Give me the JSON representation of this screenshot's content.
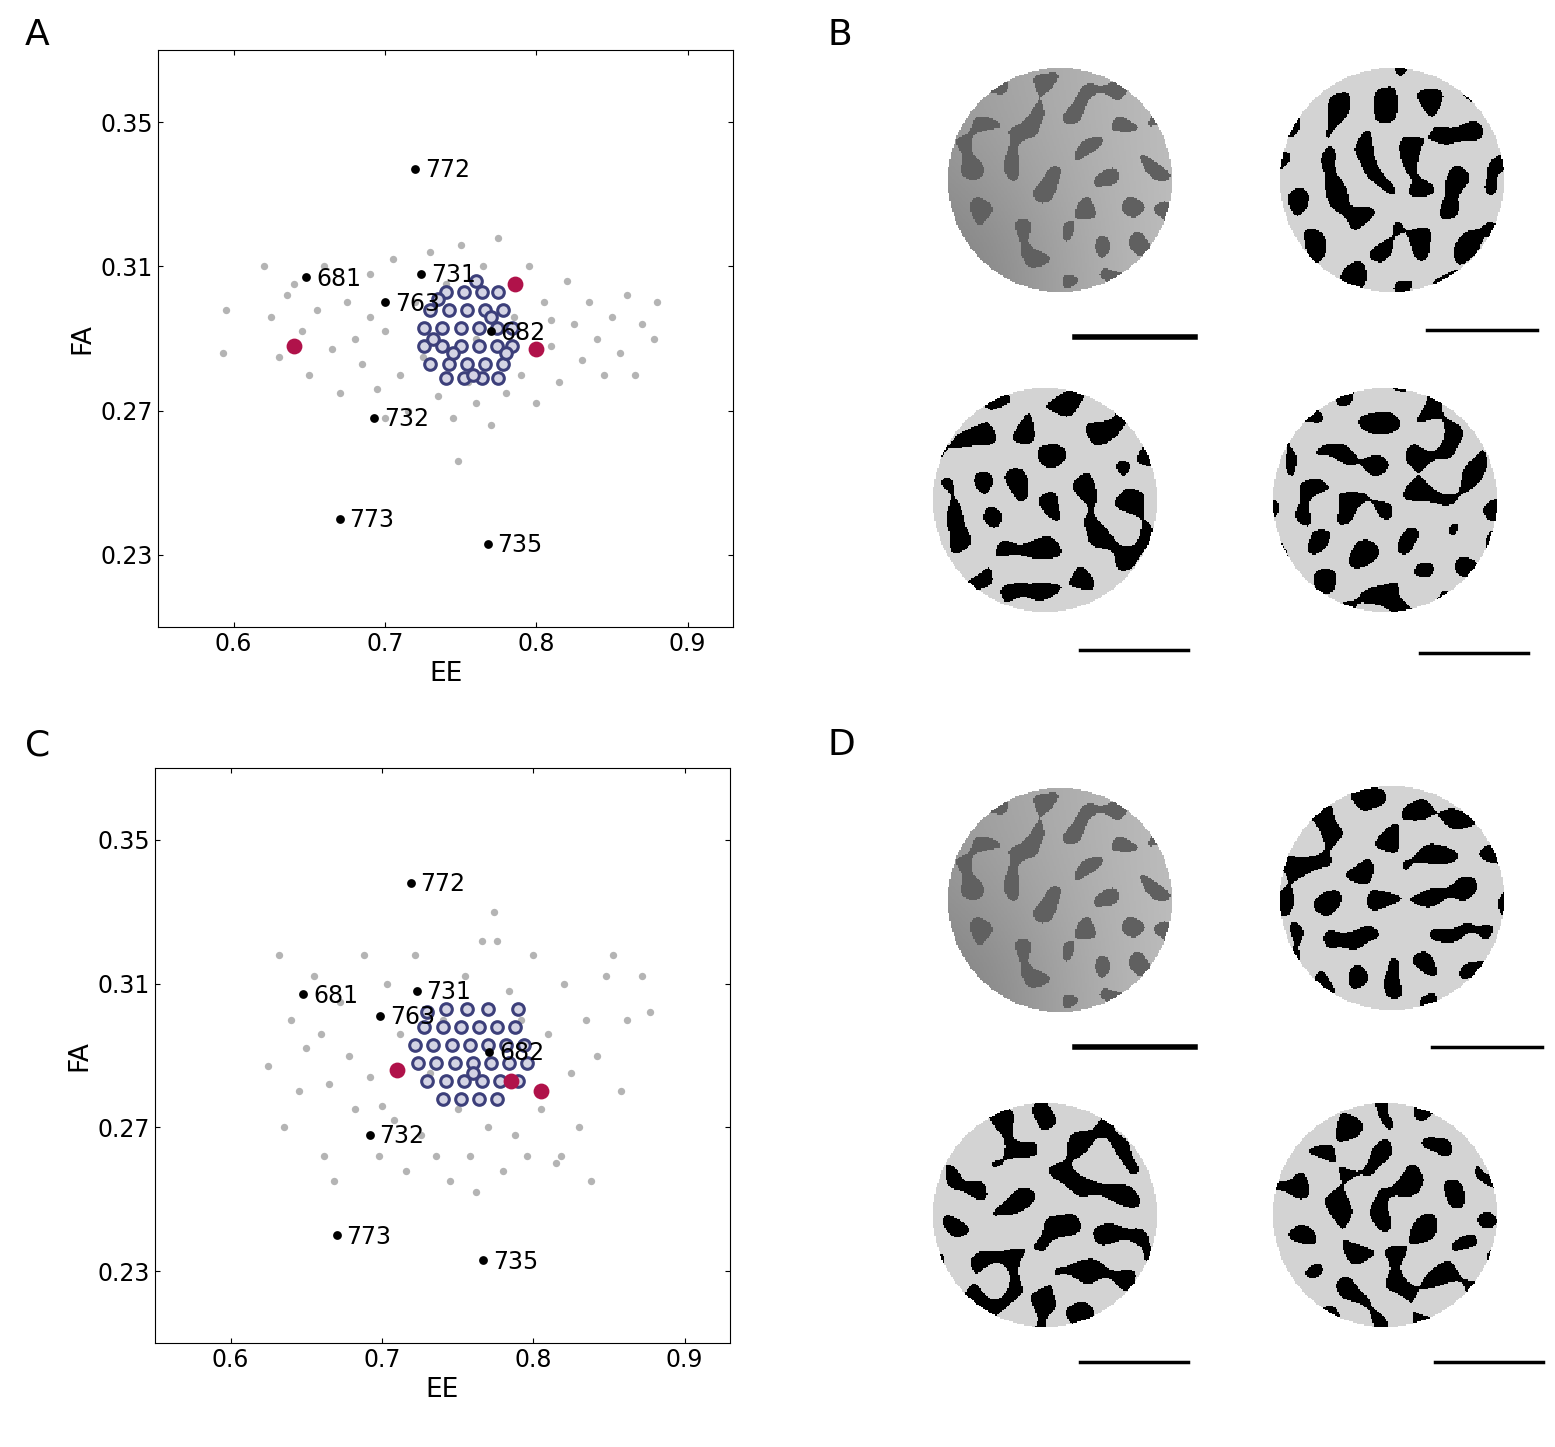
{
  "chart_data": [
    {
      "type": "scatter",
      "title": "A",
      "x_label": "EE",
      "y_label": "FA",
      "xlim": [
        0.55,
        0.93
      ],
      "ylim": [
        0.21,
        0.37
      ],
      "xticks": [
        0.6,
        0.7,
        0.8,
        0.9
      ],
      "yticks": [
        0.23,
        0.27,
        0.31,
        0.35
      ],
      "series": [
        {
          "color": "#b4b4b4",
          "marker": "o",
          "x": [
            0.595,
            0.593,
            0.62,
            0.625,
            0.63,
            0.635,
            0.645,
            0.65,
            0.655,
            0.66,
            0.665,
            0.67,
            0.675,
            0.68,
            0.685,
            0.69,
            0.695,
            0.7,
            0.705,
            0.71,
            0.715,
            0.72,
            0.725,
            0.73,
            0.735,
            0.74,
            0.745,
            0.748,
            0.75,
            0.755,
            0.76,
            0.765,
            0.77,
            0.775,
            0.78,
            0.785,
            0.79,
            0.795,
            0.8,
            0.805,
            0.81,
            0.815,
            0.82,
            0.825,
            0.83,
            0.835,
            0.84,
            0.845,
            0.85,
            0.855,
            0.86,
            0.87,
            0.88,
            0.878,
            0.865,
            0.7,
            0.76,
            0.81,
            0.69,
            0.64
          ],
          "values": [
            0.298,
            0.286,
            0.31,
            0.296,
            0.285,
            0.302,
            0.292,
            0.28,
            0.298,
            0.31,
            0.287,
            0.275,
            0.3,
            0.29,
            0.283,
            0.308,
            0.276,
            0.292,
            0.312,
            0.28,
            0.27,
            0.3,
            0.285,
            0.314,
            0.274,
            0.305,
            0.268,
            0.256,
            0.316,
            0.278,
            0.272,
            0.31,
            0.266,
            0.318,
            0.275,
            0.296,
            0.28,
            0.31,
            0.272,
            0.3,
            0.288,
            0.278,
            0.306,
            0.294,
            0.284,
            0.3,
            0.29,
            0.28,
            0.296,
            0.286,
            0.302,
            0.294,
            0.3,
            0.29,
            0.28,
            0.268,
            0.29,
            0.295,
            0.296,
            0.305
          ]
        },
        {
          "color": "#3c3f7a",
          "marker": "o",
          "x": [
            0.74,
            0.752,
            0.764,
            0.775,
            0.73,
            0.742,
            0.754,
            0.766,
            0.778,
            0.726,
            0.738,
            0.75,
            0.762,
            0.774,
            0.784,
            0.726,
            0.738,
            0.75,
            0.762,
            0.774,
            0.784,
            0.73,
            0.742,
            0.754,
            0.766,
            0.778,
            0.74,
            0.752,
            0.764,
            0.775,
            0.735,
            0.76,
            0.77,
            0.745,
            0.78,
            0.732,
            0.758
          ],
          "values": [
            0.303,
            0.303,
            0.303,
            0.303,
            0.298,
            0.298,
            0.298,
            0.298,
            0.298,
            0.293,
            0.293,
            0.293,
            0.293,
            0.293,
            0.293,
            0.288,
            0.288,
            0.288,
            0.288,
            0.288,
            0.288,
            0.283,
            0.283,
            0.283,
            0.283,
            0.283,
            0.279,
            0.279,
            0.279,
            0.279,
            0.301,
            0.306,
            0.296,
            0.286,
            0.286,
            0.29,
            0.28
          ]
        },
        {
          "color": "#b0124a",
          "marker": "o",
          "x": [
            0.64,
            0.786,
            0.8
          ],
          "values": [
            0.288,
            0.305,
            0.287
          ]
        },
        {
          "color": "#000000",
          "marker": "o",
          "x": [
            0.72,
            0.648,
            0.724,
            0.7,
            0.77,
            0.693,
            0.67,
            0.768
          ],
          "values": [
            0.337,
            0.307,
            0.308,
            0.3,
            0.292,
            0.268,
            0.24,
            0.233
          ],
          "labels": [
            "772",
            "681",
            "731",
            "763",
            "682",
            "732",
            "773",
            "735"
          ]
        }
      ]
    },
    {
      "type": "scatter",
      "title": "C",
      "x_label": "EE",
      "y_label": "FA",
      "xlim": [
        0.55,
        0.93
      ],
      "ylim": [
        0.21,
        0.37
      ],
      "xticks": [
        0.6,
        0.7,
        0.8,
        0.9
      ],
      "yticks": [
        0.23,
        0.27,
        0.31,
        0.35
      ],
      "series": [
        {
          "color": "#b4b4b4",
          "marker": "o",
          "x": [
            0.625,
            0.632,
            0.635,
            0.64,
            0.645,
            0.65,
            0.655,
            0.66,
            0.662,
            0.665,
            0.668,
            0.672,
            0.678,
            0.682,
            0.688,
            0.692,
            0.698,
            0.703,
            0.708,
            0.712,
            0.716,
            0.722,
            0.726,
            0.732,
            0.736,
            0.74,
            0.745,
            0.75,
            0.755,
            0.758,
            0.762,
            0.766,
            0.77,
            0.774,
            0.776,
            0.78,
            0.784,
            0.788,
            0.792,
            0.796,
            0.8,
            0.805,
            0.81,
            0.815,
            0.82,
            0.825,
            0.83,
            0.835,
            0.838,
            0.842,
            0.848,
            0.853,
            0.858,
            0.862,
            0.872,
            0.877,
            0.818,
            0.7
          ],
          "values": [
            0.287,
            0.318,
            0.27,
            0.3,
            0.28,
            0.292,
            0.312,
            0.296,
            0.262,
            0.282,
            0.255,
            0.305,
            0.29,
            0.275,
            0.318,
            0.284,
            0.262,
            0.31,
            0.272,
            0.296,
            0.258,
            0.318,
            0.268,
            0.285,
            0.262,
            0.3,
            0.255,
            0.275,
            0.312,
            0.262,
            0.252,
            0.322,
            0.27,
            0.33,
            0.322,
            0.258,
            0.308,
            0.268,
            0.3,
            0.262,
            0.318,
            0.275,
            0.296,
            0.26,
            0.31,
            0.285,
            0.27,
            0.3,
            0.255,
            0.29,
            0.312,
            0.318,
            0.28,
            0.3,
            0.312,
            0.302,
            0.262,
            0.276
          ]
        },
        {
          "color": "#3c3f7a",
          "marker": "o",
          "x": [
            0.742,
            0.756,
            0.77,
            0.728,
            0.74,
            0.752,
            0.764,
            0.776,
            0.788,
            0.722,
            0.734,
            0.746,
            0.758,
            0.77,
            0.782,
            0.794,
            0.724,
            0.736,
            0.748,
            0.76,
            0.772,
            0.784,
            0.796,
            0.73,
            0.742,
            0.754,
            0.766,
            0.778,
            0.79,
            0.74,
            0.752,
            0.764,
            0.776,
            0.73,
            0.79,
            0.76
          ],
          "values": [
            0.303,
            0.303,
            0.303,
            0.298,
            0.298,
            0.298,
            0.298,
            0.298,
            0.298,
            0.293,
            0.293,
            0.293,
            0.293,
            0.293,
            0.293,
            0.293,
            0.288,
            0.288,
            0.288,
            0.288,
            0.288,
            0.288,
            0.288,
            0.283,
            0.283,
            0.283,
            0.283,
            0.283,
            0.283,
            0.278,
            0.278,
            0.278,
            0.278,
            0.302,
            0.303,
            0.285
          ]
        },
        {
          "color": "#b0124a",
          "marker": "o",
          "x": [
            0.71,
            0.785,
            0.805
          ],
          "values": [
            0.286,
            0.283,
            0.28
          ]
        },
        {
          "color": "#000000",
          "marker": "o",
          "x": [
            0.719,
            0.648,
            0.723,
            0.699,
            0.771,
            0.692,
            0.67,
            0.767
          ],
          "values": [
            0.338,
            0.307,
            0.308,
            0.301,
            0.291,
            0.268,
            0.24,
            0.233
          ],
          "labels": [
            "772",
            "681",
            "731",
            "763",
            "682",
            "732",
            "773",
            "735"
          ]
        }
      ]
    }
  ],
  "image_panels": [
    {
      "label": "B"
    },
    {
      "label": "D"
    }
  ]
}
